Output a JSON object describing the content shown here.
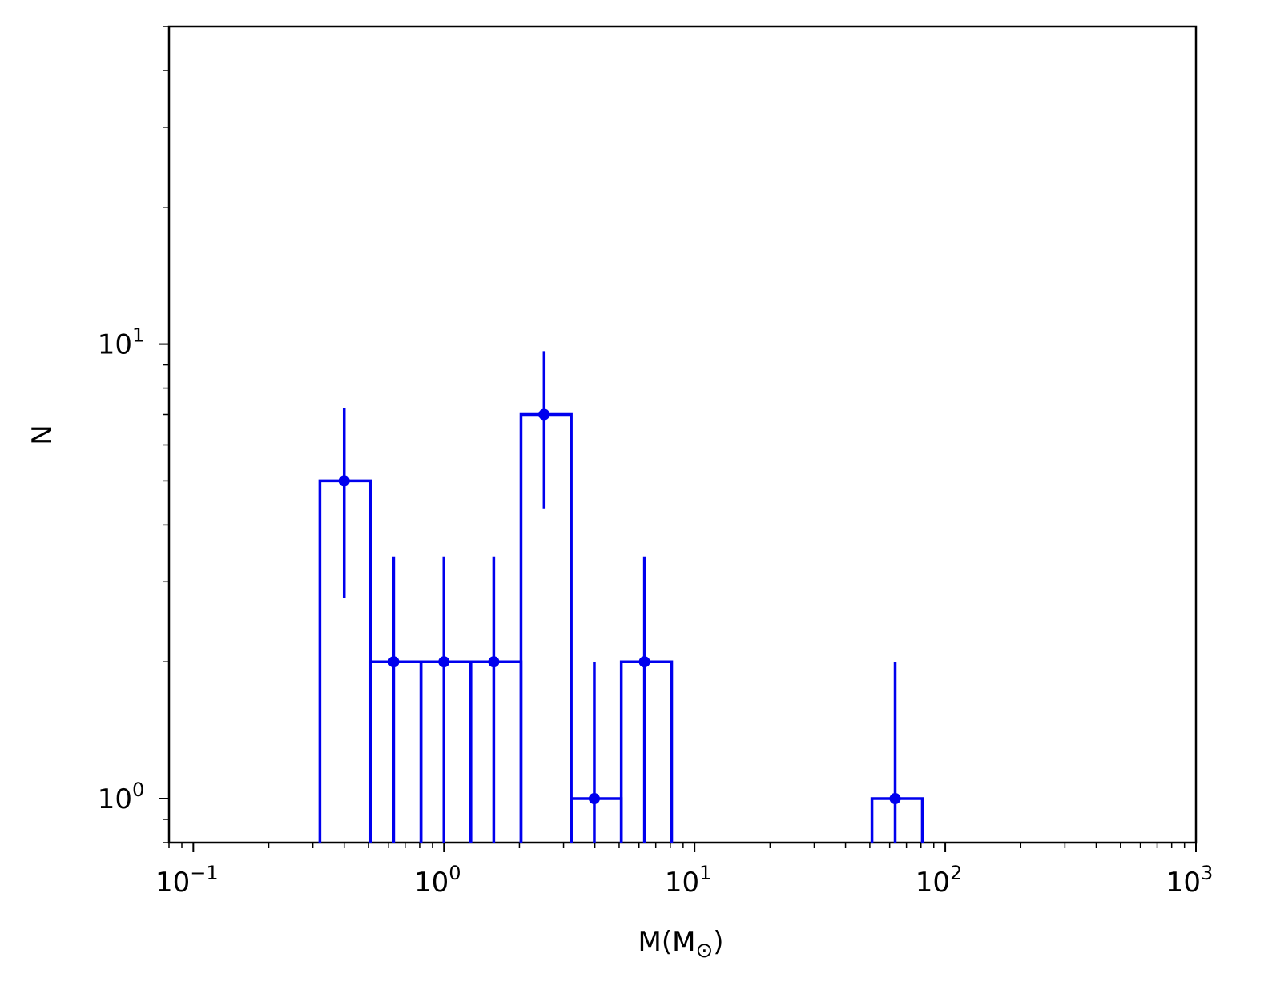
{
  "chart_data": {
    "type": "histogram",
    "xlabel": "M(M",
    "xlabel_sub": "⊙",
    "xlabel_close": ")",
    "ylabel": "N",
    "xscale": "log",
    "yscale": "log",
    "xlim": [
      0.08,
      1000
    ],
    "ylim": [
      0.8,
      50
    ],
    "grid": false,
    "color": "#0000ee",
    "x_major_ticks": [
      {
        "value": 0.1,
        "base": "10",
        "exp": "−1"
      },
      {
        "value": 1,
        "base": "10",
        "exp": "0"
      },
      {
        "value": 10,
        "base": "10",
        "exp": "1"
      },
      {
        "value": 100,
        "base": "10",
        "exp": "2"
      },
      {
        "value": 1000,
        "base": "10",
        "exp": "3"
      }
    ],
    "y_major_ticks": [
      {
        "value": 1,
        "base": "10",
        "exp": "0"
      },
      {
        "value": 10,
        "base": "10",
        "exp": "1"
      }
    ],
    "bins": [
      {
        "x_lo": 0.32,
        "x_hi": 0.51,
        "x_center": 0.4,
        "count": 5,
        "err_lo": 2.76,
        "err_hi": 7.24
      },
      {
        "x_lo": 0.51,
        "x_hi": 0.81,
        "x_center": 0.63,
        "count": 2,
        "err_lo": 0.59,
        "err_hi": 3.41
      },
      {
        "x_lo": 0.81,
        "x_hi": 1.28,
        "x_center": 1.0,
        "count": 2,
        "err_lo": 0.59,
        "err_hi": 3.41
      },
      {
        "x_lo": 1.28,
        "x_hi": 2.03,
        "x_center": 1.58,
        "count": 2,
        "err_lo": 0.59,
        "err_hi": 3.41
      },
      {
        "x_lo": 2.03,
        "x_hi": 3.22,
        "x_center": 2.51,
        "count": 7,
        "err_lo": 4.35,
        "err_hi": 9.65
      },
      {
        "x_lo": 3.22,
        "x_hi": 5.1,
        "x_center": 3.98,
        "count": 1,
        "err_lo": 0.5,
        "err_hi": 2.0
      },
      {
        "x_lo": 5.1,
        "x_hi": 8.1,
        "x_center": 6.31,
        "count": 2,
        "err_lo": 0.59,
        "err_hi": 3.41
      },
      {
        "x_lo": 51.0,
        "x_hi": 81.0,
        "x_center": 63.1,
        "count": 1,
        "err_lo": 0.5,
        "err_hi": 2.0
      }
    ]
  }
}
